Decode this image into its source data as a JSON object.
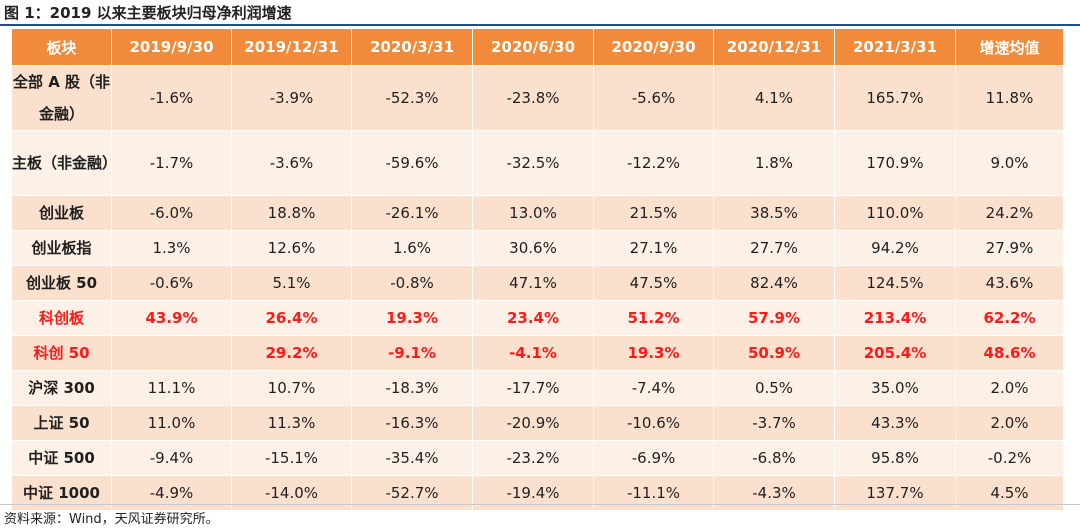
{
  "title": "图 1：2019 以来主要板块归母净利润增速",
  "table": {
    "headers": [
      "板块",
      "2019/9/30",
      "2019/12/31",
      "2020/3/31",
      "2020/6/30",
      "2020/9/30",
      "2020/12/31",
      "2021/3/31",
      "增速均值"
    ],
    "rows": [
      {
        "label": "全部 A 股（非金融）",
        "values": [
          "-1.6%",
          "-3.9%",
          "-52.3%",
          "-23.8%",
          "-5.6%",
          "4.1%",
          "165.7%",
          "11.8%"
        ]
      },
      {
        "label": "主板（非金融）",
        "values": [
          "-1.7%",
          "-3.6%",
          "-59.6%",
          "-32.5%",
          "-12.2%",
          "1.8%",
          "170.9%",
          "9.0%"
        ]
      },
      {
        "label": "创业板",
        "values": [
          "-6.0%",
          "18.8%",
          "-26.1%",
          "13.0%",
          "21.5%",
          "38.5%",
          "110.0%",
          "24.2%"
        ]
      },
      {
        "label": "创业板指",
        "values": [
          "1.3%",
          "12.6%",
          "1.6%",
          "30.6%",
          "27.1%",
          "27.7%",
          "94.2%",
          "27.9%"
        ]
      },
      {
        "label": "创业板 50",
        "values": [
          "-0.6%",
          "5.1%",
          "-0.8%",
          "47.1%",
          "47.5%",
          "82.4%",
          "124.5%",
          "43.6%"
        ]
      },
      {
        "label": "科创板",
        "values": [
          "43.9%",
          "26.4%",
          "19.3%",
          "23.4%",
          "51.2%",
          "57.9%",
          "213.4%",
          "62.2%"
        ],
        "highlight": true
      },
      {
        "label": "科创 50",
        "values": [
          "",
          "29.2%",
          "-9.1%",
          "-4.1%",
          "19.3%",
          "50.9%",
          "205.4%",
          "48.6%"
        ],
        "highlight": true
      },
      {
        "label": "沪深 300",
        "values": [
          "11.1%",
          "10.7%",
          "-18.3%",
          "-17.7%",
          "-7.4%",
          "0.5%",
          "35.0%",
          "2.0%"
        ]
      },
      {
        "label": "上证 50",
        "values": [
          "11.0%",
          "11.3%",
          "-16.3%",
          "-20.9%",
          "-10.6%",
          "-3.7%",
          "43.3%",
          "2.0%"
        ]
      },
      {
        "label": "中证 500",
        "values": [
          "-9.4%",
          "-15.1%",
          "-35.4%",
          "-23.2%",
          "-6.9%",
          "-6.8%",
          "95.8%",
          "-0.2%"
        ]
      },
      {
        "label": "中证 1000",
        "values": [
          "-4.9%",
          "-14.0%",
          "-52.7%",
          "-19.4%",
          "-11.1%",
          "-4.3%",
          "137.7%",
          "4.5%"
        ]
      }
    ]
  },
  "source": "资料来源：Wind，天风证券研究所。",
  "colors": {
    "header_bg": "#f18a3b",
    "row_odd_bg": "#fbe1cd",
    "row_even_bg": "#fdf1e7",
    "highlight_text": "#ff1a1a",
    "title_rule": "#1a4f8b"
  }
}
